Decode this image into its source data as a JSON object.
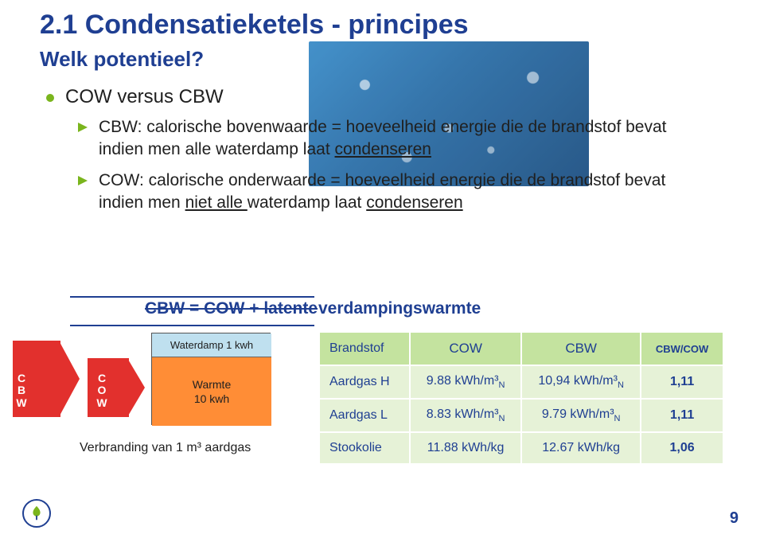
{
  "title": "2.1 Condensatieketels - principes",
  "subtitle": "Welk potentieel?",
  "bullet1": "COW versus CBW",
  "bullet2a_pre": "CBW: calorische bovenwaarde = hoeveelheid energie die de brandstof bevat indien men alle waterdamp laat ",
  "bullet2a_u": "condenseren",
  "bullet2b_pre": "COW: calorische onderwaarde = hoeveelheid energie die de brandstof bevat indien men ",
  "bullet2b_u1": "niet alle ",
  "bullet2b_mid": "waterdamp laat ",
  "bullet2b_u2": "condenseren",
  "formula_struck": "CBW = COW + latente",
  "formula_rest": "verdampingswarmte",
  "diagram": {
    "cbw": "C\nB\nW",
    "cow": "C\nO\nW",
    "waterdamp": "Waterdamp 1 kwh",
    "warmte_l1": "Warmte",
    "warmte_l2": "10 kwh",
    "verbranding": "Verbranding van 1 m³ aardgas"
  },
  "table": {
    "headers": [
      "Brandstof",
      "COW",
      "CBW",
      "CBW/COW"
    ],
    "rows": [
      [
        "Aardgas H",
        "9.88 kWh/m³",
        "10,94 kWh/m³",
        "1,11"
      ],
      [
        "Aardgas L",
        "8.83 kWh/m³",
        "9.79 kWh/m³",
        "1,11"
      ],
      [
        "Stookolie",
        "11.88 kWh/kg",
        "12.67 kWh/kg",
        "1,06"
      ]
    ],
    "sub_n_rows": [
      true,
      true,
      false
    ]
  },
  "page_number": "9",
  "colors": {
    "title": "#1f3f92",
    "accent_green": "#7ab51d",
    "arrow_red": "#e2302d",
    "box_orange": "#ff8d36",
    "box_blue": "#bfe0ef",
    "table_header": "#c4e39f",
    "table_cell": "#e6f2d7"
  }
}
